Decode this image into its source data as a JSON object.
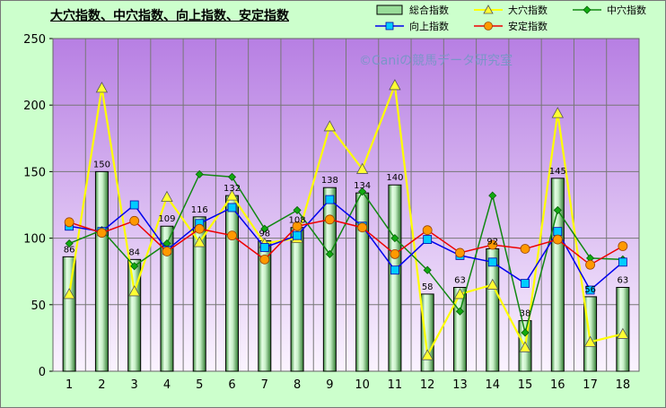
{
  "chart_data": {
    "type": "bar+line",
    "title": "大穴指数、中穴指数、向上指数、安定指数",
    "watermark": "©Caniの競馬データ研究室",
    "categories": [
      "1",
      "2",
      "3",
      "4",
      "5",
      "6",
      "7",
      "8",
      "9",
      "10",
      "11",
      "12",
      "13",
      "14",
      "15",
      "16",
      "17",
      "18"
    ],
    "ylim": [
      0,
      250
    ],
    "yticks": [
      0,
      50,
      100,
      150,
      200,
      250
    ],
    "grid": true,
    "legend_position": "top-right",
    "series": [
      {
        "name": "総合指数",
        "kind": "bar",
        "color": "#339933",
        "values": [
          86,
          150,
          84,
          109,
          116,
          132,
          98,
          108,
          138,
          134,
          140,
          58,
          63,
          92,
          38,
          145,
          56,
          63
        ],
        "labels": [
          "86",
          "150",
          "84",
          "109",
          "116",
          "132",
          "98",
          "108",
          "138",
          "134",
          "140",
          "58",
          "63",
          "92",
          "38",
          "145",
          "56",
          "63"
        ]
      },
      {
        "name": "大穴指数",
        "kind": "line",
        "marker": "triangle",
        "color": "#ffff00",
        "marker_fill": "#ffff33",
        "values": [
          58,
          213,
          60,
          131,
          97,
          132,
          96,
          100,
          184,
          152,
          215,
          12,
          58,
          65,
          18,
          194,
          22,
          28
        ]
      },
      {
        "name": "中穴指数",
        "kind": "line",
        "marker": "diamond",
        "color": "#118811",
        "marker_fill": "#11aa11",
        "values": [
          96,
          106,
          79,
          96,
          148,
          146,
          107,
          121,
          88,
          135,
          100,
          76,
          45,
          132,
          29,
          121,
          85,
          84
        ]
      },
      {
        "name": "向上指数",
        "kind": "line",
        "marker": "square",
        "color": "#0000ee",
        "marker_fill": "#00ccff",
        "values": [
          109,
          105,
          125,
          91,
          111,
          123,
          93,
          102,
          129,
          109,
          76,
          99,
          87,
          82,
          66,
          105,
          61,
          82
        ]
      },
      {
        "name": "安定指数",
        "kind": "line",
        "marker": "circle",
        "color": "#ee0000",
        "marker_fill": "#ff9900",
        "values": [
          112,
          104,
          113,
          90,
          107,
          102,
          84,
          109,
          114,
          108,
          88,
          106,
          89,
          95,
          92,
          99,
          80,
          94
        ]
      }
    ]
  }
}
